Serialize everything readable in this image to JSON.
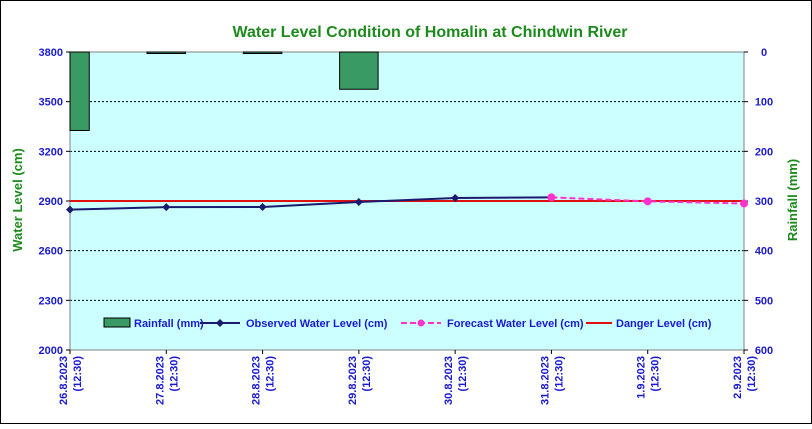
{
  "chart_data": {
    "type": "line",
    "title": "Water Level Condition of Homalin at Chindwin River",
    "ylabel": "Water Level (cm)",
    "y2label": "Rainfall (mm)",
    "ylim": [
      2000,
      3800
    ],
    "y2lim": [
      0,
      600
    ],
    "y2_inverted": true,
    "yticks": [
      "3800",
      "3500",
      "3200",
      "2900",
      "2600",
      "2300",
      "2000"
    ],
    "y2ticks": [
      "0",
      "100",
      "200",
      "300",
      "400",
      "500",
      "600"
    ],
    "categories": [
      {
        "date": "26.8.2023",
        "time": "(12:30)"
      },
      {
        "date": "27.8.2023",
        "time": "(12:30)"
      },
      {
        "date": "28.8.2023",
        "time": "(12:30)"
      },
      {
        "date": "29.8.2023",
        "time": "(12:30)"
      },
      {
        "date": "30.8.2023",
        "time": "(12:30)"
      },
      {
        "date": "31.8.2023",
        "time": "(12:30)"
      },
      {
        "date": "1.9.2023",
        "time": "(12:30)"
      },
      {
        "date": "2.9.2023",
        "time": "(12:30)"
      }
    ],
    "series": [
      {
        "name": "Rainfall (mm)",
        "kind": "bar",
        "axis": "right",
        "color": "#3a9a63",
        "values": [
          158,
          2,
          2,
          75,
          null,
          null,
          null,
          null
        ]
      },
      {
        "name": "Observed Water Level (cm)",
        "kind": "line",
        "axis": "left",
        "color": "#1a1a6e",
        "values": [
          2848,
          2863,
          2864,
          2894,
          2918,
          2922,
          null,
          null
        ]
      },
      {
        "name": "Forecast Water Level (cm)",
        "kind": "dashed-line",
        "axis": "left",
        "color": "#ff33cc",
        "values": [
          null,
          null,
          null,
          null,
          null,
          2922,
          2898,
          2885
        ]
      },
      {
        "name": "Danger Level (cm)",
        "kind": "hline",
        "axis": "left",
        "color": "#e01010",
        "values": [
          2900,
          2900,
          2900,
          2900,
          2900,
          2900,
          2900,
          2900
        ]
      }
    ],
    "grid": true,
    "legend_position": "bottom-inside",
    "colors": {
      "plot_background": "#ccffff",
      "title": "#1d8a1d",
      "axis_label": "#1d8a1d",
      "tick_label": "#1a1ad0"
    }
  }
}
